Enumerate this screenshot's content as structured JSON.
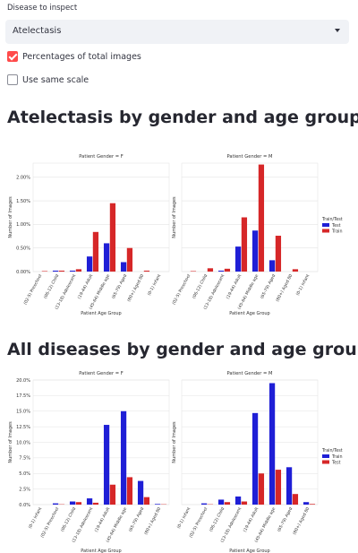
{
  "controls": {
    "disease_label": "Disease to inspect",
    "disease_value": "Atelectasis",
    "pct_label": "Percentages of total images",
    "pct_checked": true,
    "same_scale_label": "Use same scale",
    "same_scale_checked": false
  },
  "headings": {
    "chart1": "Atelectasis by gender and age group",
    "chart2": "All diseases by gender and age group"
  },
  "colors": {
    "blue": "#1f1fd6",
    "red": "#d62728"
  },
  "chart_data": [
    {
      "type": "bar",
      "panel_titles": [
        "Patient Gender = F",
        "Patient Gender = M"
      ],
      "categories": [
        "(02-5) Preschool",
        "(06-12) Child",
        "(13-18) Adolescent",
        "(19-44) Adult",
        "(45-64) Middle age",
        "(65-79) Aged",
        "(80+) Aged 80",
        "(0-1) Infant"
      ],
      "xlabel": "Patient Age Group",
      "ylabel": "Number of Images",
      "ylim": [
        0,
        2.3
      ],
      "yticks": [
        "0.00%",
        "0.50%",
        "1.00%",
        "1.50%",
        "2.00%"
      ],
      "ytick_values": [
        0,
        0.5,
        1.0,
        1.5,
        2.0
      ],
      "legend_title": "Train/Test",
      "legend_position": "right",
      "series": [
        {
          "name": "Test",
          "color_key": "blue",
          "values_F": [
            0,
            0.02,
            0.02,
            0.32,
            0.6,
            0.2,
            0,
            0
          ],
          "values_M": [
            0,
            0,
            0.02,
            0.53,
            0.87,
            0.24,
            0,
            0
          ]
        },
        {
          "name": "Train",
          "color_key": "red",
          "values_F": [
            0.01,
            0.02,
            0.05,
            0.84,
            1.45,
            0.5,
            0.02,
            0
          ],
          "values_M": [
            0.01,
            0.07,
            0.06,
            1.15,
            2.27,
            0.76,
            0.05,
            0
          ]
        }
      ]
    },
    {
      "type": "bar",
      "panel_titles": [
        "Patient Gender = F",
        "Patient Gender = M"
      ],
      "categories": [
        "(0-1) Infant",
        "(02-5) Preschool",
        "(06-12) Child",
        "(13-18) Adolescent",
        "(19-44) Adult",
        "(45-64) Middle age",
        "(65-79) Aged",
        "(80+) Aged 80"
      ],
      "xlabel": "Patient Age Group",
      "ylabel": "Number of Images",
      "ylim": [
        0,
        20
      ],
      "yticks": [
        "0.0%",
        "2.5%",
        "5.0%",
        "7.5%",
        "10.0%",
        "12.5%",
        "15.0%",
        "17.5%",
        "20.0%"
      ],
      "ytick_values": [
        0,
        2.5,
        5,
        7.5,
        10,
        12.5,
        15,
        17.5,
        20
      ],
      "legend_title": "Train/Test",
      "legend_position": "right",
      "series": [
        {
          "name": "Train",
          "color_key": "blue",
          "values_F": [
            0,
            0.2,
            0.5,
            1.0,
            12.8,
            15.0,
            3.8,
            0.1
          ],
          "values_M": [
            0,
            0.2,
            0.8,
            1.3,
            14.7,
            19.5,
            6.0,
            0.4
          ]
        },
        {
          "name": "Test",
          "color_key": "red",
          "values_F": [
            0,
            0.05,
            0.4,
            0.3,
            3.2,
            4.4,
            1.2,
            0.05
          ],
          "values_M": [
            0,
            0.05,
            0.4,
            0.5,
            5.0,
            5.6,
            1.7,
            0.1
          ]
        }
      ]
    }
  ]
}
